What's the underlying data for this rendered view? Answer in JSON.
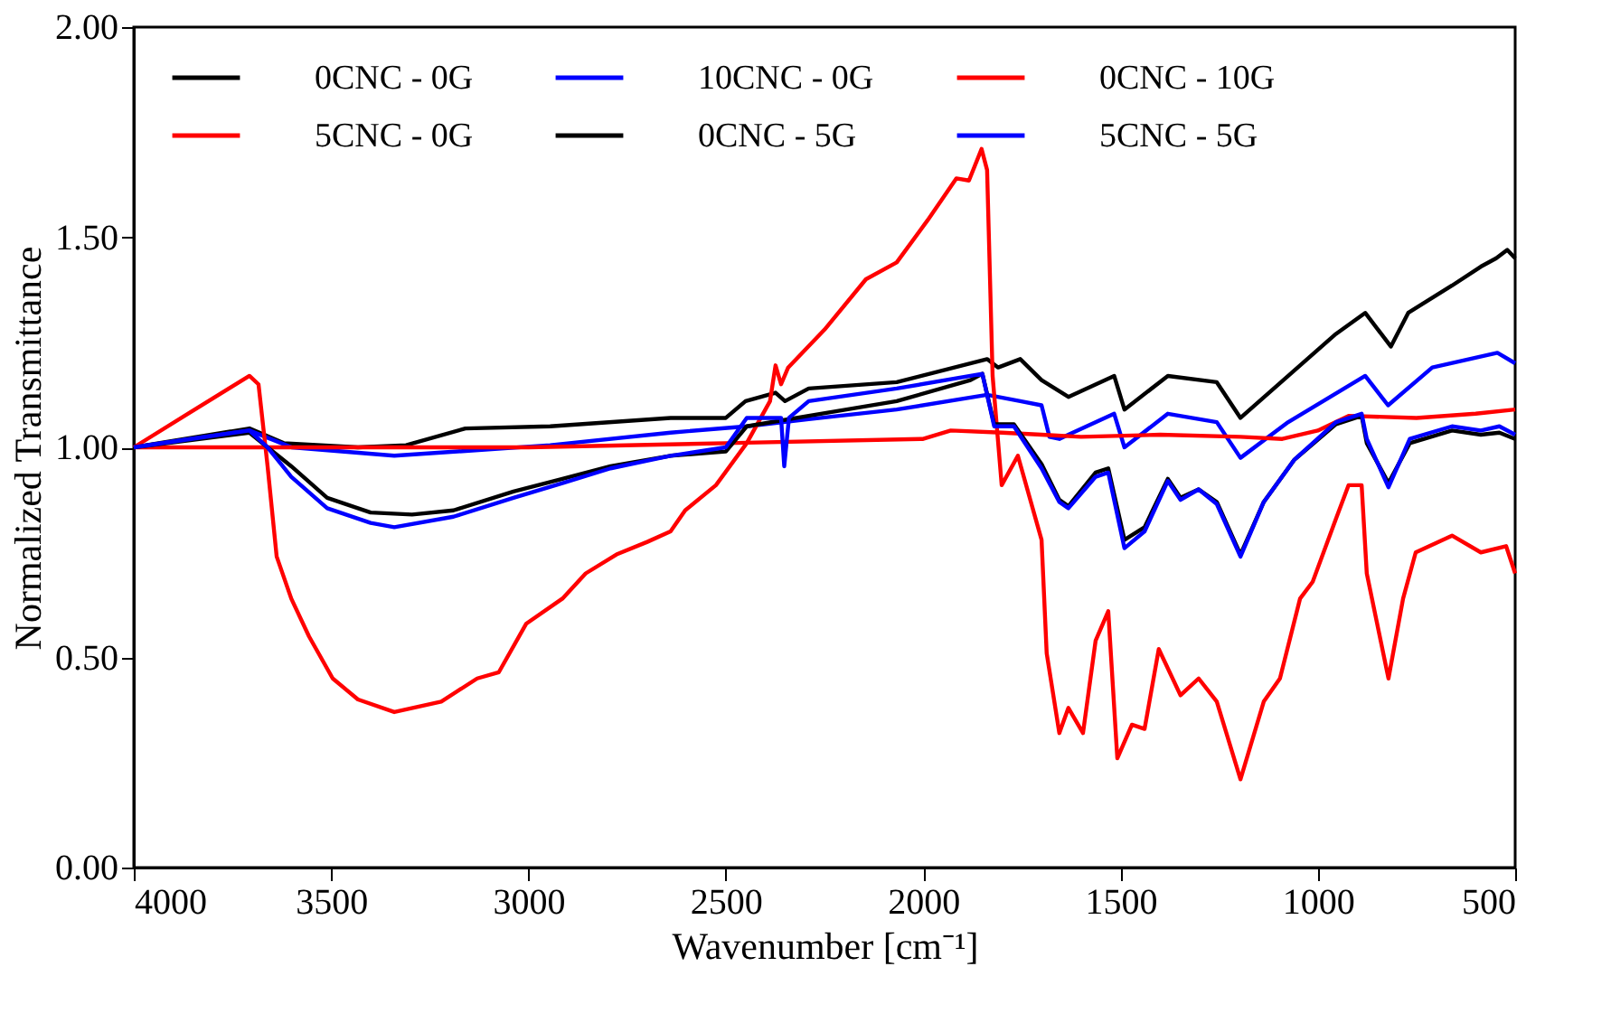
{
  "chart_data": {
    "type": "line",
    "xlabel": "Wavenumber [cm⁻¹]",
    "ylabel": "Normalized Transmittance",
    "xlim": [
      4000,
      500
    ],
    "xticks": [
      4000,
      3500,
      3000,
      2500,
      2000,
      1500,
      1000,
      500
    ],
    "ylim": [
      0,
      2
    ],
    "yticks": [
      {
        "value": 0,
        "label": "0.00"
      },
      {
        "value": 0.5,
        "label": "0.50"
      },
      {
        "value": 1,
        "label": "1.00"
      },
      {
        "value": 1.5,
        "label": "1.50"
      },
      {
        "value": 2,
        "label": "2.00"
      }
    ],
    "grid": false,
    "legend": "top",
    "marker": "none",
    "line_style": "solid",
    "series": [
      {
        "name": "0CNC - 0G",
        "color": "#000000",
        "x": [
          4000,
          3707,
          3620,
          3432,
          3310,
          3160,
          2945,
          2640,
          2500,
          2450,
          2374,
          2350,
          2290,
          2067,
          1838,
          1810,
          1754,
          1700,
          1632,
          1516,
          1490,
          1380,
          1256,
          1196,
          1075,
          954,
          880,
          815,
          771,
          660,
          587,
          548,
          520,
          500
        ],
        "values": [
          1.0,
          1.045,
          1.01,
          1.0,
          1.005,
          1.045,
          1.05,
          1.07,
          1.07,
          1.11,
          1.13,
          1.11,
          1.14,
          1.155,
          1.21,
          1.19,
          1.21,
          1.16,
          1.12,
          1.17,
          1.09,
          1.17,
          1.155,
          1.07,
          1.17,
          1.27,
          1.32,
          1.24,
          1.32,
          1.385,
          1.43,
          1.45,
          1.47,
          1.45
        ]
      },
      {
        "name": "10CNC - 0G",
        "color": "#0000ff",
        "x": [
          4000,
          3707,
          3600,
          3340,
          2945,
          2640,
          2447,
          2290,
          2067,
          1838,
          1754,
          1700,
          1680,
          1655,
          1632,
          1516,
          1490,
          1380,
          1256,
          1196,
          1075,
          880,
          822,
          710,
          545,
          500
        ],
        "values": [
          1.0,
          1.04,
          1.0,
          0.98,
          1.005,
          1.035,
          1.05,
          1.067,
          1.09,
          1.125,
          1.11,
          1.1,
          1.025,
          1.02,
          1.03,
          1.08,
          1.0,
          1.08,
          1.06,
          0.975,
          1.06,
          1.17,
          1.1,
          1.19,
          1.225,
          1.2
        ]
      },
      {
        "name": "0CNC - 10G",
        "color": "#ff0000",
        "x": [
          4000,
          3000,
          2500,
          2000,
          1930,
          1800,
          1700,
          1600,
          1400,
          1196,
          1090,
          1000,
          922,
          750,
          600,
          500
        ],
        "values": [
          1.0,
          1.0,
          1.01,
          1.02,
          1.04,
          1.035,
          1.03,
          1.025,
          1.03,
          1.025,
          1.02,
          1.04,
          1.075,
          1.07,
          1.08,
          1.09
        ]
      },
      {
        "name": "5CNC - 0G",
        "color": "#ff0000",
        "x": [
          4000,
          3863,
          3707,
          3684,
          3661,
          3638,
          3601,
          3556,
          3496,
          3432,
          3340,
          3221,
          3130,
          3075,
          3006,
          2914,
          2855,
          2777,
          2699,
          2640,
          2603,
          2525,
          2447,
          2388,
          2374,
          2360,
          2342,
          2250,
          2145,
          2067,
          1989,
          1916,
          1884,
          1852,
          1838,
          1824,
          1801,
          1760,
          1700,
          1687,
          1655,
          1632,
          1595,
          1563,
          1531,
          1508,
          1471,
          1439,
          1403,
          1348,
          1302,
          1256,
          1196,
          1137,
          1096,
          1045,
          1013,
          954,
          922,
          889,
          876,
          821,
          784,
          752,
          660,
          587,
          523,
          500
        ],
        "values": [
          1.0,
          1.08,
          1.17,
          1.15,
          0.955,
          0.74,
          0.64,
          0.55,
          0.45,
          0.4,
          0.37,
          0.395,
          0.45,
          0.465,
          0.58,
          0.64,
          0.7,
          0.745,
          0.775,
          0.8,
          0.85,
          0.91,
          1.01,
          1.11,
          1.195,
          1.15,
          1.19,
          1.28,
          1.4,
          1.44,
          1.54,
          1.64,
          1.635,
          1.71,
          1.66,
          1.17,
          0.91,
          0.98,
          0.78,
          0.51,
          0.32,
          0.38,
          0.32,
          0.54,
          0.61,
          0.26,
          0.34,
          0.33,
          0.52,
          0.41,
          0.45,
          0.395,
          0.21,
          0.395,
          0.45,
          0.64,
          0.68,
          0.83,
          0.91,
          0.91,
          0.7,
          0.45,
          0.64,
          0.75,
          0.79,
          0.75,
          0.765,
          0.7
        ]
      },
      {
        "name": "0CNC - 5G",
        "color": "#000000",
        "x": [
          4000,
          3707,
          3661,
          3601,
          3510,
          3400,
          3295,
          3190,
          3038,
          2914,
          2792,
          2640,
          2500,
          2447,
          2290,
          2067,
          1880,
          1850,
          1820,
          1770,
          1700,
          1655,
          1632,
          1563,
          1531,
          1490,
          1439,
          1380,
          1348,
          1302,
          1256,
          1196,
          1137,
          1060,
          954,
          889,
          876,
          821,
          767,
          660,
          587,
          540,
          500
        ],
        "values": [
          1.0,
          1.035,
          1.0,
          0.955,
          0.88,
          0.845,
          0.84,
          0.85,
          0.895,
          0.925,
          0.955,
          0.98,
          0.99,
          1.05,
          1.075,
          1.11,
          1.16,
          1.175,
          1.055,
          1.055,
          0.96,
          0.875,
          0.86,
          0.94,
          0.95,
          0.78,
          0.81,
          0.925,
          0.88,
          0.9,
          0.87,
          0.745,
          0.87,
          0.97,
          1.055,
          1.075,
          1.01,
          0.915,
          1.01,
          1.04,
          1.03,
          1.035,
          1.02
        ]
      },
      {
        "name": "5CNC - 5G",
        "color": "#0000ff",
        "x": [
          4000,
          3707,
          3661,
          3601,
          3510,
          3400,
          3340,
          3190,
          3038,
          2914,
          2792,
          2640,
          2500,
          2447,
          2360,
          2352,
          2340,
          2290,
          2067,
          1850,
          1820,
          1770,
          1700,
          1655,
          1632,
          1563,
          1531,
          1490,
          1439,
          1380,
          1348,
          1302,
          1256,
          1196,
          1137,
          1060,
          954,
          889,
          876,
          821,
          767,
          660,
          587,
          540,
          500
        ],
        "values": [
          1.0,
          1.04,
          1.0,
          0.93,
          0.855,
          0.82,
          0.81,
          0.835,
          0.88,
          0.915,
          0.95,
          0.98,
          1.0,
          1.07,
          1.07,
          0.955,
          1.07,
          1.11,
          1.14,
          1.175,
          1.05,
          1.05,
          0.95,
          0.87,
          0.855,
          0.93,
          0.94,
          0.76,
          0.8,
          0.92,
          0.875,
          0.9,
          0.865,
          0.74,
          0.87,
          0.97,
          1.06,
          1.08,
          1.02,
          0.905,
          1.02,
          1.05,
          1.04,
          1.05,
          1.03
        ]
      }
    ]
  }
}
